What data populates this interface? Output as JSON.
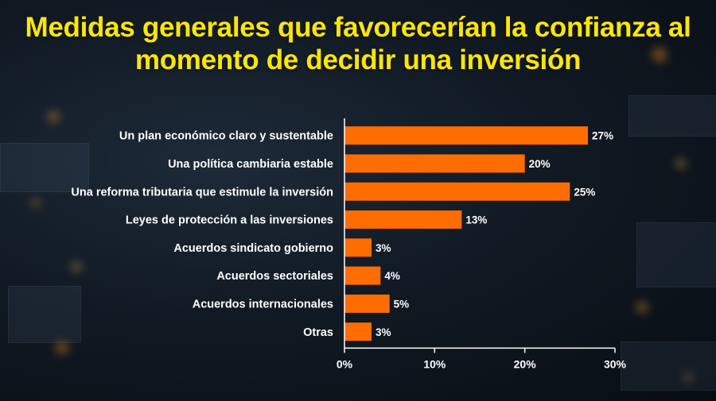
{
  "chart_data": {
    "type": "bar",
    "orientation": "horizontal",
    "title": "Medidas generales que favorecerían la confianza al momento de decidir una inversión",
    "title_lines": [
      "Medidas generales que favorecerían la confianza al",
      "momento de decidir una inversión"
    ],
    "categories": [
      "Un plan económico claro y sustentable",
      "Una política  cambiaria estable",
      "Una reforma tributaria que estimule la inversión",
      "Leyes de protección a las inversiones",
      "Acuerdos sindicato gobierno",
      "Acuerdos sectoriales",
      "Acuerdos internacionales",
      "Otras"
    ],
    "values": [
      27,
      20,
      25,
      13,
      3,
      4,
      5,
      3
    ],
    "value_labels": [
      "27%",
      "20%",
      "25%",
      "13%",
      "3%",
      "4%",
      "5%",
      "3%"
    ],
    "xlim": [
      0,
      30
    ],
    "x_ticks": [
      0,
      10,
      20,
      30
    ],
    "x_tick_labels": [
      "0%",
      "10%",
      "20%",
      "30%"
    ],
    "xlabel": "",
    "ylabel": "",
    "grid": false,
    "legend": "none",
    "colors": {
      "bar": "#ff6d00",
      "title": "#ffe600",
      "text": "#ffffff",
      "axis": "#ffffff"
    }
  }
}
